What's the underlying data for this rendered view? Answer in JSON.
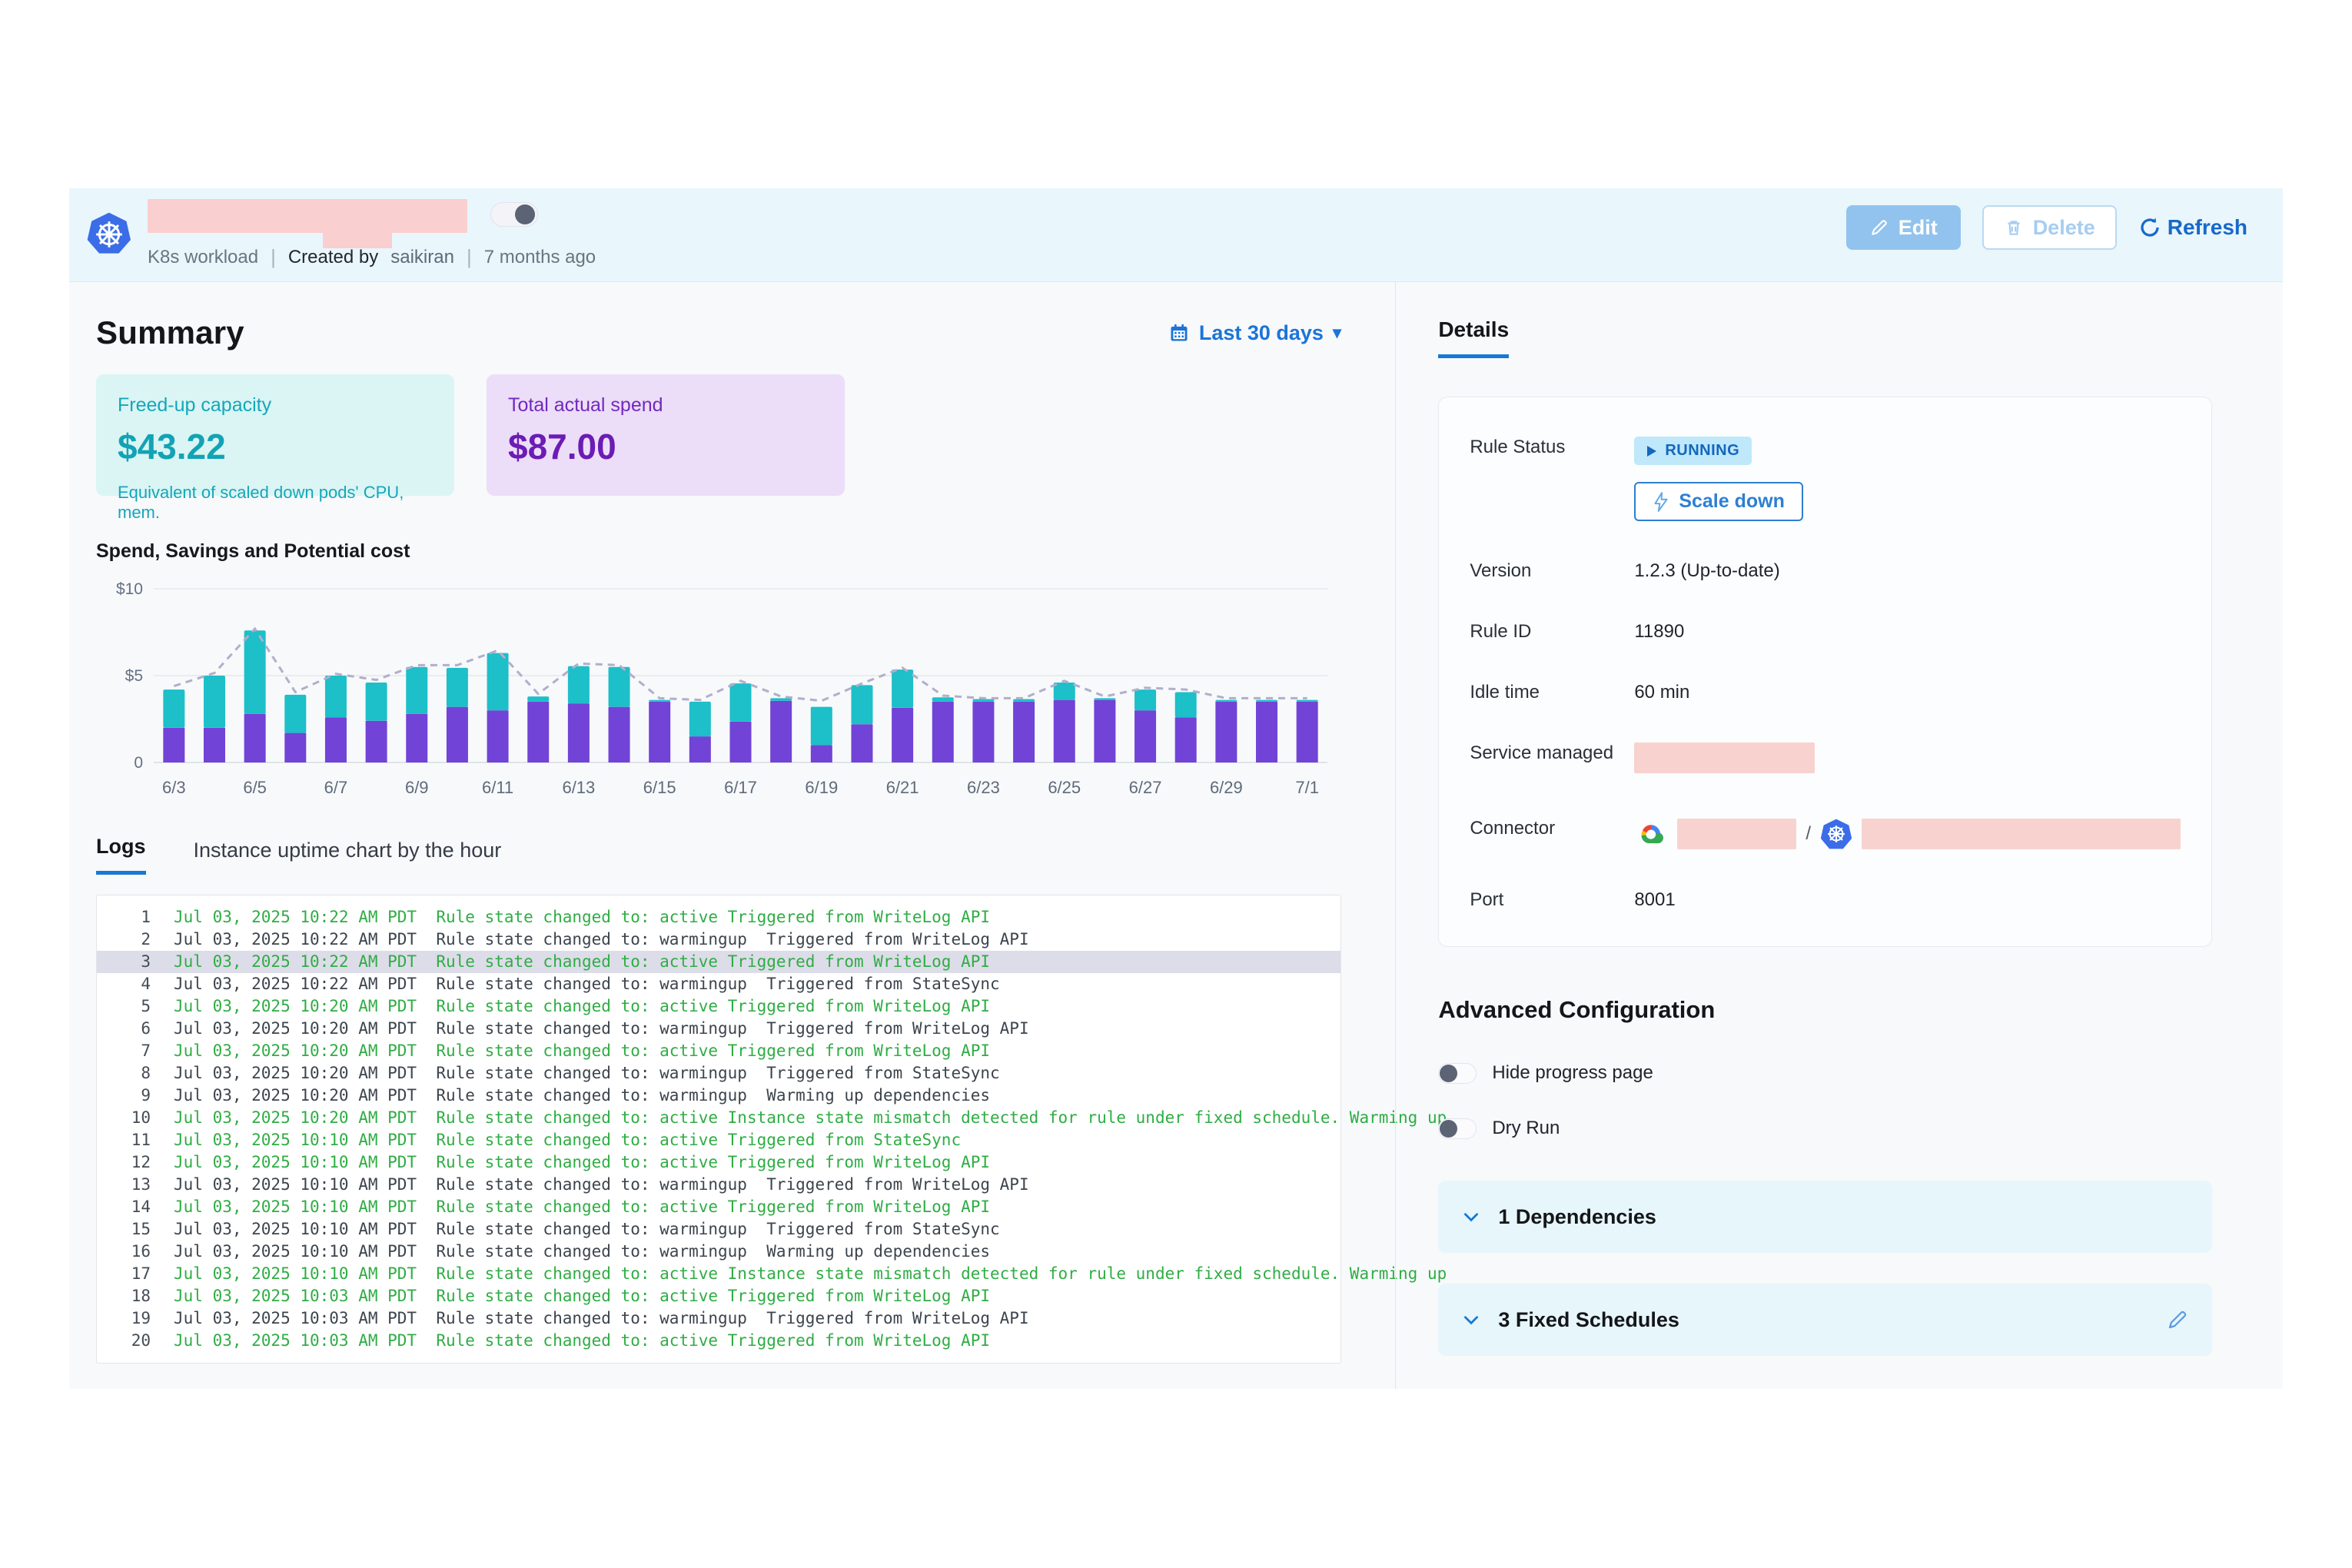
{
  "header": {
    "title_redacted": true,
    "workload_type": "K8s workload",
    "created_by_label": "Created by",
    "created_by": "saikiran",
    "created_ago": "7 months ago",
    "toggle_on": true,
    "actions": {
      "edit_label": "Edit",
      "delete_label": "Delete",
      "refresh_label": "Refresh"
    }
  },
  "summary": {
    "heading": "Summary",
    "date_range": "Last 30 days",
    "cards": [
      {
        "label": "Freed-up capacity",
        "value": "$43.22",
        "caption": "Equivalent of scaled down pods' CPU, mem.",
        "accent": "#12a3b5"
      },
      {
        "label": "Total actual spend",
        "value": "$87.00",
        "caption": "",
        "accent": "#6b1cb4"
      }
    ]
  },
  "chart_data": {
    "type": "bar",
    "stacked": true,
    "title": "Spend, Savings and Potential cost",
    "x": [
      "6/3",
      "6/4",
      "6/5",
      "6/6",
      "6/7",
      "6/8",
      "6/9",
      "6/10",
      "6/11",
      "6/12",
      "6/13",
      "6/14",
      "6/15",
      "6/16",
      "6/17",
      "6/18",
      "6/19",
      "6/20",
      "6/21",
      "6/22",
      "6/23",
      "6/24",
      "6/25",
      "6/26",
      "6/27",
      "6/28",
      "6/29",
      "6/30",
      "7/1"
    ],
    "x_label_every": 2,
    "series": [
      {
        "name": "Spend",
        "type": "bar",
        "color": "#7143d7",
        "values": [
          2.0,
          2.0,
          2.8,
          1.7,
          2.6,
          2.4,
          2.8,
          3.2,
          3.0,
          3.5,
          3.4,
          3.2,
          3.5,
          1.5,
          2.35,
          3.55,
          1.0,
          2.2,
          3.15,
          3.5,
          3.5,
          3.5,
          3.6,
          3.6,
          3.0,
          2.6,
          3.5,
          3.5,
          3.5
        ]
      },
      {
        "name": "Savings",
        "type": "bar",
        "color": "#1dbfc8",
        "values": [
          2.2,
          3.0,
          4.8,
          2.2,
          2.4,
          2.2,
          2.7,
          2.25,
          3.3,
          0.3,
          2.15,
          2.3,
          0.1,
          2.0,
          2.2,
          0.15,
          2.2,
          2.25,
          2.2,
          0.25,
          0.15,
          0.15,
          1.0,
          0.1,
          1.2,
          1.45,
          0.1,
          0.1,
          0.1
        ]
      },
      {
        "name": "Potential cost",
        "type": "dashed-line",
        "color": "#b2aecb",
        "values": [
          4.4,
          5.15,
          7.7,
          4.05,
          5.1,
          4.75,
          5.6,
          5.6,
          6.45,
          3.95,
          5.7,
          5.6,
          3.7,
          3.6,
          4.7,
          3.8,
          3.55,
          4.55,
          5.45,
          3.85,
          3.7,
          3.7,
          4.7,
          3.8,
          4.3,
          4.2,
          3.7,
          3.7,
          3.7
        ]
      }
    ],
    "ylim": [
      0,
      10
    ],
    "yticks": [
      {
        "v": 0,
        "label": "0"
      },
      {
        "v": 5,
        "label": "$5"
      },
      {
        "v": 10,
        "label": "$10"
      }
    ],
    "grid": true,
    "legend": "none"
  },
  "logs": {
    "tabs": [
      "Logs",
      "Instance uptime chart by the hour"
    ],
    "active_tab": "Logs",
    "entries": [
      {
        "num": "1",
        "variant": "active",
        "highlighted": false,
        "text": "Jul 03, 2025 10:22 AM PDT  Rule state changed to: active Triggered from WriteLog API"
      },
      {
        "num": "2",
        "variant": "warmingup",
        "highlighted": false,
        "text": "Jul 03, 2025 10:22 AM PDT  Rule state changed to: warmingup  Triggered from WriteLog API"
      },
      {
        "num": "3",
        "variant": "active",
        "highlighted": true,
        "text": "Jul 03, 2025 10:22 AM PDT  Rule state changed to: active Triggered from WriteLog API"
      },
      {
        "num": "4",
        "variant": "warmingup",
        "highlighted": false,
        "text": "Jul 03, 2025 10:22 AM PDT  Rule state changed to: warmingup  Triggered from StateSync"
      },
      {
        "num": "5",
        "variant": "active",
        "highlighted": false,
        "text": "Jul 03, 2025 10:20 AM PDT  Rule state changed to: active Triggered from WriteLog API"
      },
      {
        "num": "6",
        "variant": "warmingup",
        "highlighted": false,
        "text": "Jul 03, 2025 10:20 AM PDT  Rule state changed to: warmingup  Triggered from WriteLog API"
      },
      {
        "num": "7",
        "variant": "active",
        "highlighted": false,
        "text": "Jul 03, 2025 10:20 AM PDT  Rule state changed to: active Triggered from WriteLog API"
      },
      {
        "num": "8",
        "variant": "warmingup",
        "highlighted": false,
        "text": "Jul 03, 2025 10:20 AM PDT  Rule state changed to: warmingup  Triggered from StateSync"
      },
      {
        "num": "9",
        "variant": "warmingup",
        "highlighted": false,
        "text": "Jul 03, 2025 10:20 AM PDT  Rule state changed to: warmingup  Warming up dependencies"
      },
      {
        "num": "10",
        "variant": "active",
        "highlighted": false,
        "text": "Jul 03, 2025 10:20 AM PDT  Rule state changed to: active Instance state mismatch detected for rule under fixed schedule. Warming up"
      },
      {
        "num": "11",
        "variant": "active",
        "highlighted": false,
        "text": "Jul 03, 2025 10:10 AM PDT  Rule state changed to: active Triggered from StateSync"
      },
      {
        "num": "12",
        "variant": "active",
        "highlighted": false,
        "text": "Jul 03, 2025 10:10 AM PDT  Rule state changed to: active Triggered from WriteLog API"
      },
      {
        "num": "13",
        "variant": "warmingup",
        "highlighted": false,
        "text": "Jul 03, 2025 10:10 AM PDT  Rule state changed to: warmingup  Triggered from WriteLog API"
      },
      {
        "num": "14",
        "variant": "active",
        "highlighted": false,
        "text": "Jul 03, 2025 10:10 AM PDT  Rule state changed to: active Triggered from WriteLog API"
      },
      {
        "num": "15",
        "variant": "warmingup",
        "highlighted": false,
        "text": "Jul 03, 2025 10:10 AM PDT  Rule state changed to: warmingup  Triggered from StateSync"
      },
      {
        "num": "16",
        "variant": "warmingup",
        "highlighted": false,
        "text": "Jul 03, 2025 10:10 AM PDT  Rule state changed to: warmingup  Warming up dependencies"
      },
      {
        "num": "17",
        "variant": "active",
        "highlighted": false,
        "text": "Jul 03, 2025 10:10 AM PDT  Rule state changed to: active Instance state mismatch detected for rule under fixed schedule. Warming up"
      },
      {
        "num": "18",
        "variant": "active",
        "highlighted": false,
        "text": "Jul 03, 2025 10:03 AM PDT  Rule state changed to: active Triggered from WriteLog API"
      },
      {
        "num": "19",
        "variant": "warmingup",
        "highlighted": false,
        "text": "Jul 03, 2025 10:03 AM PDT  Rule state changed to: warmingup  Triggered from WriteLog API"
      },
      {
        "num": "20",
        "variant": "active",
        "highlighted": false,
        "text": "Jul 03, 2025 10:03 AM PDT  Rule state changed to: active Triggered from WriteLog API"
      }
    ]
  },
  "details": {
    "tab_label": "Details",
    "rule_status_label": "Rule Status",
    "rule_status": "RUNNING",
    "scale_down_label": "Scale down",
    "rows": [
      {
        "label": "Version",
        "type": "text",
        "value": "1.2.3 (Up-to-date)"
      },
      {
        "label": "Rule ID",
        "type": "text",
        "value": "11890"
      },
      {
        "label": "Idle time",
        "type": "text",
        "value": "60 min"
      },
      {
        "label": "Service managed",
        "type": "redacted",
        "value": ""
      },
      {
        "label": "Connector",
        "type": "connector",
        "value": ""
      },
      {
        "label": "Port",
        "type": "text",
        "value": "8001"
      }
    ]
  },
  "advanced": {
    "heading": "Advanced Configuration",
    "toggles": [
      {
        "label": "Hide progress page",
        "on": false
      },
      {
        "label": "Dry Run",
        "on": false
      }
    ],
    "sections": [
      {
        "label": "1 Dependencies",
        "editable": false
      },
      {
        "label": "3 Fixed Schedules",
        "editable": true
      }
    ]
  },
  "colors": {
    "accent_blue": "#1b74d9",
    "tab_underline": "#1779d4",
    "band_bg": "#e9f6fc",
    "main_bg": "#f7f9fb",
    "bar_spend": "#7143d7",
    "bar_savings": "#1dbfc8",
    "potential_line": "#b2aecb",
    "log_active_green": "#2fad44",
    "log_warmingup": "#3d444d",
    "redaction_pink": "#f8d2cf",
    "running_badge_bg": "#bfe8fa",
    "running_badge_text": "#1566bd"
  },
  "icons": {
    "header_logo": "kubernetes-icon",
    "edit": "pencil-icon",
    "delete": "trash-icon",
    "refresh": "refresh-icon",
    "date_range": "calendar-icon",
    "caret": "caret-down-icon",
    "rule_status": "play-icon",
    "scale_down": "lightning-icon",
    "connector": [
      "google-cloud-icon",
      "kubernetes-icon"
    ],
    "accordion": "chevron-down-icon",
    "fixed_schedules_edit": "pencil-icon"
  }
}
